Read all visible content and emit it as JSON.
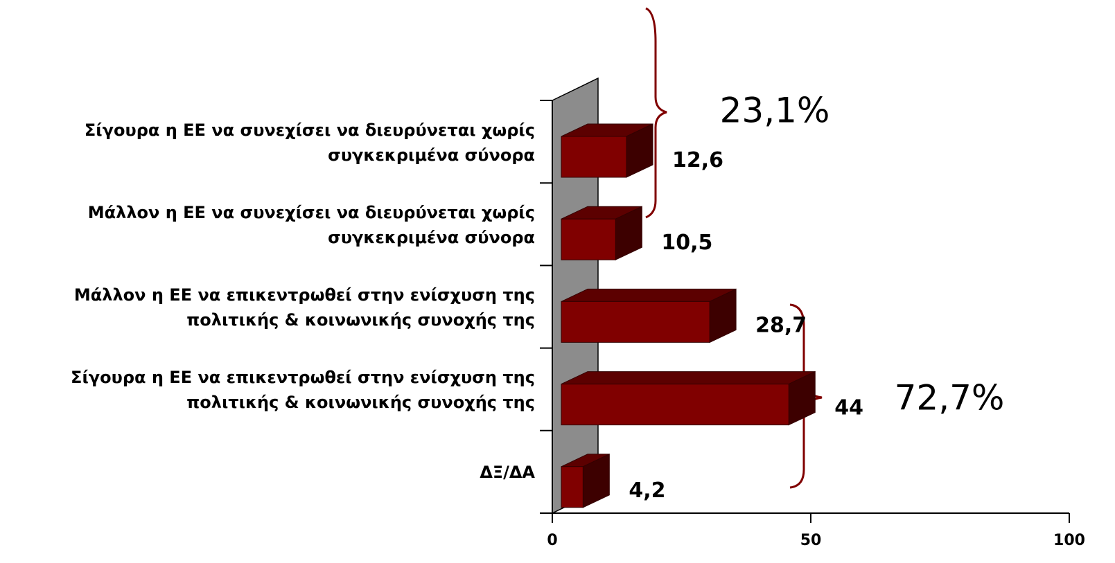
{
  "chart_data": {
    "type": "bar3d_horizontal",
    "categories": [
      "Σίγουρα η ΕΕ να συνεχίσει να διευρύνεται χωρίς\nσυγκεκριμένα σύνορα",
      "Μάλλον η ΕΕ να συνεχίσει να διευρύνεται χωρίς\nσυγκεκριμένα σύνορα",
      "Μάλλον η ΕΕ να επικεντρωθεί στην ενίσχυση της\nπολιτικής & κοινωνικής συνοχής της",
      "Σίγουρα η ΕΕ να επικεντρωθεί στην ενίσχυση της\nπολιτικής & κοινωνικής συνοχής της",
      "ΔΞ/ΔΑ"
    ],
    "values": [
      12.6,
      10.5,
      28.7,
      44,
      4.2
    ],
    "value_labels": [
      "12,6",
      "10,5",
      "28,7",
      "44",
      "4,2"
    ],
    "color": "#800000",
    "xlim": [
      0,
      100
    ],
    "xticks": [
      0,
      50,
      100
    ],
    "annotations": [
      {
        "text": "23,1%"
      },
      {
        "text": "72,7%"
      }
    ]
  }
}
